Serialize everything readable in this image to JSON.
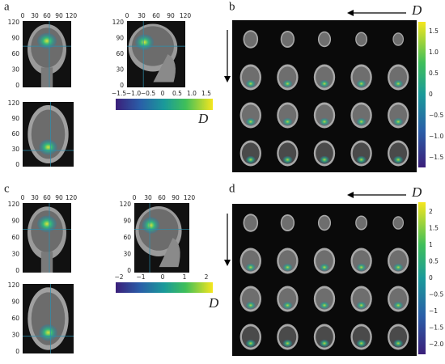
{
  "panels": [
    {
      "label": "a",
      "views": [
        {
          "xticks": [
            "0",
            "30",
            "60",
            "90",
            "120"
          ],
          "yticks": [
            "120",
            "90",
            "60",
            "30",
            "0"
          ]
        },
        {
          "yticks": [
            "120",
            "90",
            "60",
            "30",
            "0"
          ]
        },
        {
          "xticks": [
            "0",
            "30",
            "60",
            "90",
            "120"
          ],
          "yticks": [
            "120",
            "90",
            "60",
            "30",
            "0"
          ]
        }
      ],
      "colorbar": {
        "ticks": [
          "−1.5",
          "−1.0",
          "−0.5",
          "0",
          "0.5",
          "1.0",
          "1.5"
        ],
        "label": "D"
      }
    },
    {
      "label": "b",
      "arrow_label": "D",
      "colorbar": {
        "ticks": [
          "1.5",
          "1.0",
          "0.5",
          "0",
          "−0.5",
          "−1.0",
          "−1.5"
        ]
      }
    },
    {
      "label": "c",
      "views": [
        {
          "xticks": [
            "0",
            "30",
            "60",
            "90",
            "120"
          ],
          "yticks": [
            "120",
            "90",
            "60",
            "30",
            "0"
          ]
        },
        {
          "yticks": [
            "120",
            "90",
            "60",
            "30",
            "0"
          ]
        },
        {
          "xticks": [
            "0",
            "30",
            "60",
            "90",
            "120"
          ],
          "yticks": [
            "120",
            "90",
            "60",
            "30",
            "0"
          ]
        }
      ],
      "colorbar": {
        "ticks": [
          "−2",
          "−1",
          "0",
          "1",
          "2"
        ],
        "label": "D"
      }
    },
    {
      "label": "d",
      "arrow_label": "D",
      "colorbar": {
        "ticks": [
          "2",
          "1.5",
          "1",
          "0.5",
          "0",
          "−0.5",
          "−1",
          "−1.5",
          "−2.0"
        ]
      }
    }
  ]
}
